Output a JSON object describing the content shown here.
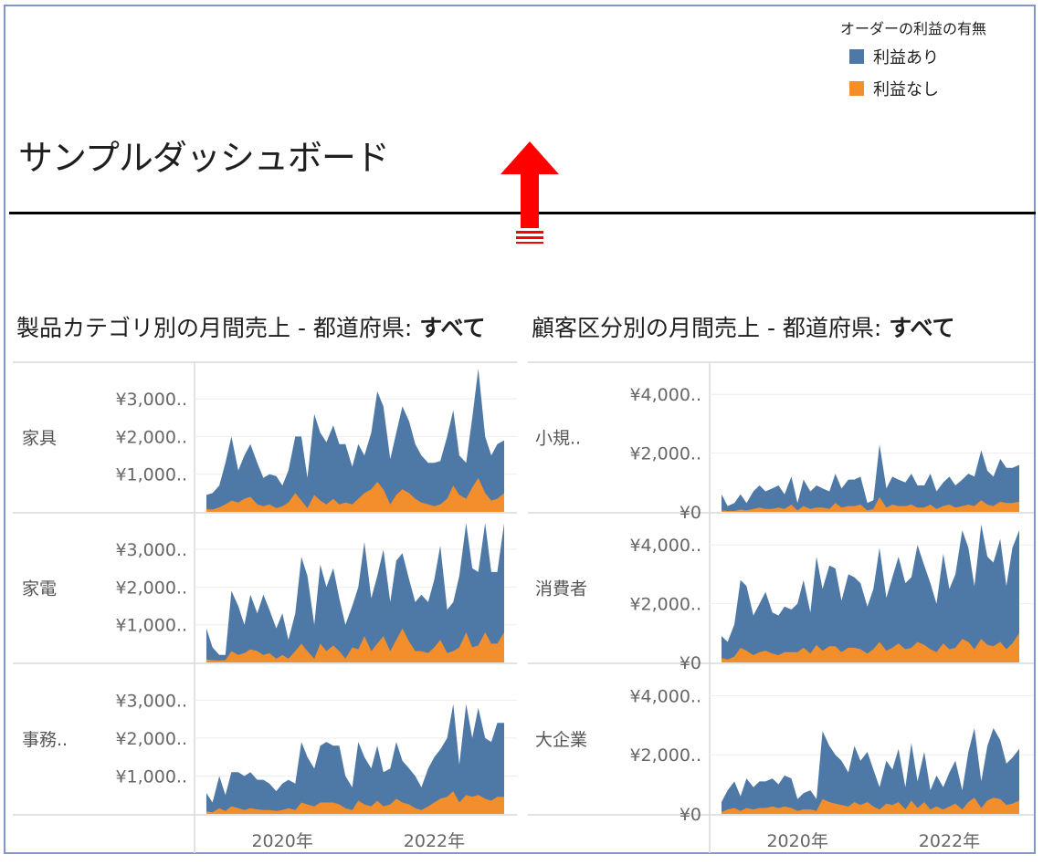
{
  "dashboard": {
    "title": "サンプルダッシュボード"
  },
  "legend": {
    "title": "オーダーの利益の有無",
    "items": [
      {
        "label": "利益あり",
        "color": "#4e79a7"
      },
      {
        "label": "利益なし",
        "color": "#f28e2b"
      }
    ]
  },
  "sheets": [
    {
      "title_prefix": "製品カテゴリ別の月間売上 - 都道府県: ",
      "title_value": "すべて"
    },
    {
      "title_prefix": "顧客区分別の月間売上 - 都道府県: ",
      "title_value": "すべて"
    }
  ],
  "annotation": {
    "icon": "up-arrow-icon",
    "color": "#ff0000"
  },
  "chart_data": [
    {
      "type": "area",
      "stacked": true,
      "facet_by": "製品カテゴリ",
      "x_tick_labels": [
        "2020年",
        "2022年"
      ],
      "x_ticks": [
        2020.0,
        2022.0
      ],
      "x_range": [
        2018.8,
        2023.0
      ],
      "ylim": [
        0,
        3900
      ],
      "y_ticks": [
        1000,
        2000,
        3000
      ],
      "y_tick_labels": [
        "¥1,000..",
        "¥2,000..",
        "¥3,000.."
      ],
      "series_names": [
        "利益あり",
        "利益なし"
      ],
      "panels": [
        {
          "label": "家具",
          "x": [
            2019.0,
            2019.08,
            2019.17,
            2019.25,
            2019.33,
            2019.42,
            2019.5,
            2019.58,
            2019.67,
            2019.75,
            2019.83,
            2019.92,
            2020.0,
            2020.08,
            2020.17,
            2020.25,
            2020.33,
            2020.42,
            2020.5,
            2020.58,
            2020.67,
            2020.75,
            2020.83,
            2020.92,
            2021.0,
            2021.08,
            2021.17,
            2021.25,
            2021.33,
            2021.42,
            2021.5,
            2021.58,
            2021.67,
            2021.75,
            2021.83,
            2021.92,
            2022.0,
            2022.08,
            2022.17,
            2022.25,
            2022.33,
            2022.42,
            2022.5,
            2022.58,
            2022.67,
            2022.75,
            2022.83,
            2022.92
          ],
          "total": [
            450,
            500,
            700,
            1300,
            2000,
            1100,
            1500,
            1800,
            1300,
            900,
            1000,
            950,
            700,
            1100,
            2000,
            2000,
            900,
            2600,
            2100,
            1850,
            2300,
            1800,
            1800,
            1200,
            1800,
            1500,
            2100,
            3200,
            2800,
            1400,
            2100,
            2800,
            2400,
            1800,
            1500,
            1300,
            1300,
            1350,
            2000,
            2700,
            1500,
            1300,
            2500,
            3800,
            2000,
            1500,
            1800,
            1900
          ],
          "no_profit": [
            80,
            60,
            120,
            200,
            300,
            250,
            350,
            400,
            200,
            150,
            200,
            100,
            150,
            250,
            500,
            300,
            100,
            450,
            300,
            200,
            350,
            200,
            250,
            200,
            350,
            500,
            600,
            800,
            600,
            200,
            450,
            600,
            500,
            350,
            250,
            200,
            150,
            200,
            350,
            700,
            450,
            350,
            650,
            900,
            500,
            300,
            350,
            500
          ]
        },
        {
          "label": "家電",
          "x": [
            2019.0,
            2019.08,
            2019.17,
            2019.25,
            2019.33,
            2019.42,
            2019.5,
            2019.58,
            2019.67,
            2019.75,
            2019.83,
            2019.92,
            2020.0,
            2020.08,
            2020.17,
            2020.25,
            2020.33,
            2020.42,
            2020.5,
            2020.58,
            2020.67,
            2020.75,
            2020.83,
            2020.92,
            2021.0,
            2021.08,
            2021.17,
            2021.25,
            2021.33,
            2021.42,
            2021.5,
            2021.58,
            2021.67,
            2021.75,
            2021.83,
            2021.92,
            2022.0,
            2022.08,
            2022.17,
            2022.25,
            2022.33,
            2022.42,
            2022.5,
            2022.58,
            2022.67,
            2022.75,
            2022.83,
            2022.92
          ],
          "total": [
            900,
            400,
            200,
            200,
            1900,
            1500,
            1000,
            1800,
            1300,
            1800,
            1400,
            900,
            1300,
            600,
            1300,
            2800,
            2300,
            1000,
            2600,
            2000,
            2500,
            1700,
            1000,
            1500,
            2000,
            3200,
            1700,
            2300,
            3000,
            1600,
            2700,
            2900,
            2200,
            1600,
            1800,
            1600,
            2200,
            3100,
            1400,
            1600,
            2300,
            3700,
            2500,
            2400,
            3700,
            2400,
            2400,
            3700
          ],
          "no_profit": [
            80,
            60,
            50,
            60,
            300,
            200,
            250,
            350,
            300,
            200,
            250,
            100,
            200,
            100,
            300,
            500,
            300,
            100,
            500,
            300,
            450,
            300,
            100,
            400,
            350,
            700,
            300,
            500,
            700,
            300,
            600,
            900,
            550,
            300,
            300,
            250,
            400,
            600,
            250,
            300,
            400,
            800,
            400,
            450,
            800,
            500,
            500,
            800
          ]
        },
        {
          "label": "事務..",
          "x": [
            2019.0,
            2019.08,
            2019.17,
            2019.25,
            2019.33,
            2019.42,
            2019.5,
            2019.58,
            2019.67,
            2019.75,
            2019.83,
            2019.92,
            2020.0,
            2020.08,
            2020.17,
            2020.25,
            2020.33,
            2020.42,
            2020.5,
            2020.58,
            2020.67,
            2020.75,
            2020.83,
            2020.92,
            2021.0,
            2021.08,
            2021.17,
            2021.25,
            2021.33,
            2021.42,
            2021.5,
            2021.58,
            2021.67,
            2021.75,
            2021.83,
            2021.92,
            2022.0,
            2022.08,
            2022.17,
            2022.25,
            2022.33,
            2022.42,
            2022.5,
            2022.58,
            2022.67,
            2022.75,
            2022.83,
            2022.92
          ],
          "total": [
            550,
            300,
            1000,
            500,
            1100,
            1100,
            1000,
            1100,
            900,
            900,
            800,
            600,
            800,
            900,
            800,
            1900,
            1500,
            1200,
            1800,
            1900,
            1800,
            1800,
            1000,
            700,
            1900,
            1500,
            1200,
            1800,
            1100,
            1200,
            1900,
            1400,
            1200,
            1000,
            700,
            1200,
            1500,
            1700,
            2000,
            2900,
            1300,
            2900,
            2000,
            2800,
            2000,
            1900,
            2400,
            2400
          ],
          "no_profit": [
            70,
            40,
            150,
            80,
            200,
            150,
            100,
            150,
            120,
            100,
            100,
            80,
            100,
            150,
            100,
            300,
            250,
            200,
            300,
            300,
            300,
            250,
            150,
            100,
            350,
            250,
            200,
            350,
            200,
            250,
            400,
            300,
            250,
            150,
            100,
            200,
            300,
            400,
            450,
            600,
            300,
            500,
            450,
            500,
            400,
            350,
            450,
            450
          ]
        }
      ]
    },
    {
      "type": "area",
      "stacked": true,
      "facet_by": "顧客区分",
      "x_tick_labels": [
        "2020年",
        "2022年"
      ],
      "x_ticks": [
        2020.0,
        2022.0
      ],
      "x_range": [
        2018.8,
        2023.0
      ],
      "ylim": [
        0,
        5000
      ],
      "y_ticks": [
        0,
        2000,
        4000
      ],
      "y_tick_labels": [
        "¥0",
        "¥2,000..",
        "¥4,000.."
      ],
      "series_names": [
        "利益あり",
        "利益なし"
      ],
      "panels": [
        {
          "label": "小規..",
          "x": [
            2019.0,
            2019.08,
            2019.17,
            2019.25,
            2019.33,
            2019.42,
            2019.5,
            2019.58,
            2019.67,
            2019.75,
            2019.83,
            2019.92,
            2020.0,
            2020.08,
            2020.17,
            2020.25,
            2020.33,
            2020.42,
            2020.5,
            2020.58,
            2020.67,
            2020.75,
            2020.83,
            2020.92,
            2021.0,
            2021.08,
            2021.17,
            2021.25,
            2021.33,
            2021.42,
            2021.5,
            2021.58,
            2021.67,
            2021.75,
            2021.83,
            2021.92,
            2022.0,
            2022.08,
            2022.17,
            2022.25,
            2022.33,
            2022.42,
            2022.5,
            2022.58,
            2022.67,
            2022.75,
            2022.83,
            2022.92
          ],
          "total": [
            600,
            200,
            300,
            600,
            300,
            700,
            900,
            700,
            800,
            900,
            600,
            1200,
            300,
            1100,
            700,
            900,
            800,
            700,
            1300,
            800,
            1100,
            1100,
            1200,
            300,
            400,
            2300,
            800,
            1200,
            1100,
            1000,
            1300,
            900,
            900,
            1300,
            700,
            1000,
            1200,
            900,
            1100,
            1300,
            1200,
            2100,
            1400,
            1200,
            1800,
            1500,
            1500,
            1600
          ],
          "no_profit": [
            50,
            30,
            30,
            80,
            50,
            100,
            150,
            100,
            100,
            150,
            100,
            250,
            50,
            200,
            100,
            150,
            150,
            100,
            300,
            150,
            200,
            200,
            250,
            50,
            100,
            500,
            150,
            250,
            200,
            200,
            250,
            150,
            150,
            250,
            100,
            200,
            250,
            150,
            200,
            250,
            200,
            400,
            250,
            200,
            350,
            300,
            300,
            350
          ]
        },
        {
          "label": "消費者",
          "x": [
            2019.0,
            2019.08,
            2019.17,
            2019.25,
            2019.33,
            2019.42,
            2019.5,
            2019.58,
            2019.67,
            2019.75,
            2019.83,
            2019.92,
            2020.0,
            2020.08,
            2020.17,
            2020.25,
            2020.33,
            2020.42,
            2020.5,
            2020.58,
            2020.67,
            2020.75,
            2020.83,
            2020.92,
            2021.0,
            2021.08,
            2021.17,
            2021.25,
            2021.33,
            2021.42,
            2021.5,
            2021.58,
            2021.67,
            2021.75,
            2021.83,
            2021.92,
            2022.0,
            2022.08,
            2022.17,
            2022.25,
            2022.33,
            2022.42,
            2022.5,
            2022.58,
            2022.67,
            2022.75,
            2022.83,
            2022.92
          ],
          "total": [
            900,
            700,
            1300,
            2800,
            2600,
            1600,
            2000,
            2400,
            1700,
            1600,
            1900,
            1800,
            2000,
            2800,
            1700,
            3600,
            2500,
            3300,
            3200,
            2100,
            3000,
            2900,
            2700,
            1900,
            2500,
            3900,
            2200,
            2900,
            3600,
            2700,
            2900,
            4000,
            3300,
            2700,
            2000,
            3700,
            2500,
            3000,
            4500,
            3900,
            2600,
            4700,
            3600,
            3400,
            4200,
            2600,
            3900,
            4500
          ],
          "no_profit": [
            150,
            100,
            200,
            500,
            400,
            250,
            350,
            400,
            300,
            250,
            350,
            350,
            350,
            500,
            300,
            600,
            400,
            550,
            550,
            350,
            500,
            500,
            450,
            300,
            450,
            700,
            400,
            500,
            650,
            450,
            500,
            700,
            600,
            450,
            350,
            650,
            450,
            500,
            800,
            700,
            450,
            800,
            600,
            550,
            700,
            450,
            650,
            1000
          ]
        },
        {
          "label": "大企業",
          "x": [
            2019.0,
            2019.08,
            2019.17,
            2019.25,
            2019.33,
            2019.42,
            2019.5,
            2019.58,
            2019.67,
            2019.75,
            2019.83,
            2019.92,
            2020.0,
            2020.08,
            2020.17,
            2020.25,
            2020.33,
            2020.42,
            2020.5,
            2020.58,
            2020.67,
            2020.75,
            2020.83,
            2020.92,
            2021.0,
            2021.08,
            2021.17,
            2021.25,
            2021.33,
            2021.42,
            2021.5,
            2021.58,
            2021.67,
            2021.75,
            2021.83,
            2021.92,
            2022.0,
            2022.08,
            2022.17,
            2022.25,
            2022.33,
            2022.42,
            2022.5,
            2022.58,
            2022.67,
            2022.75,
            2022.83,
            2022.92
          ],
          "total": [
            400,
            800,
            1100,
            600,
            1200,
            900,
            1100,
            1100,
            1200,
            1000,
            1300,
            1200,
            500,
            700,
            800,
            500,
            2800,
            2300,
            2000,
            1800,
            1400,
            2300,
            1800,
            2100,
            1500,
            900,
            1800,
            1500,
            2200,
            900,
            2400,
            1100,
            2100,
            800,
            1300,
            900,
            1400,
            1800,
            800,
            2100,
            2900,
            1100,
            2300,
            2900,
            2500,
            1700,
            1900,
            2200
          ],
          "no_profit": [
            60,
            150,
            200,
            100,
            200,
            150,
            200,
            200,
            250,
            200,
            250,
            200,
            100,
            150,
            150,
            100,
            500,
            400,
            350,
            300,
            250,
            400,
            300,
            400,
            250,
            150,
            350,
            300,
            400,
            150,
            450,
            200,
            400,
            150,
            250,
            150,
            250,
            350,
            150,
            400,
            550,
            200,
            450,
            550,
            500,
            300,
            350,
            450
          ]
        }
      ]
    }
  ]
}
